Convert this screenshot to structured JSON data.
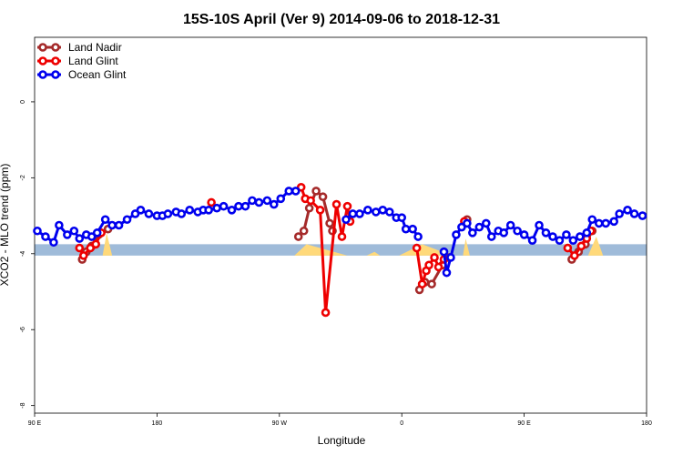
{
  "chart_data": {
    "type": "line",
    "title": "15S-10S April (Ver 9)   2014-09-06 to 2018-12-31",
    "xlabel": "Longitude",
    "ylabel": "XCO2 - MLO trend (ppm)",
    "xlim": [
      0,
      450
    ],
    "ylim": [
      -8.2,
      1.7
    ],
    "x_ticks": [
      {
        "value": 0,
        "label": "90 E"
      },
      {
        "value": 90,
        "label": "180"
      },
      {
        "value": 180,
        "label": "90 W"
      },
      {
        "value": 270,
        "label": "0"
      },
      {
        "value": 360,
        "label": "90 E"
      },
      {
        "value": 450,
        "label": "180"
      }
    ],
    "y_ticks": [
      0,
      -2,
      -4,
      -6,
      -8
    ],
    "legend_position": "top-left",
    "land_band": {
      "ymin": -4.05,
      "ymax": -3.75
    },
    "land_band_color": "#9fbbd9",
    "land_peak_color": "#ffd97a",
    "land_peaks": [
      {
        "x": [
          50,
          53,
          57
        ],
        "ymax": -3.45
      },
      {
        "x": [
          191,
          200,
          230
        ],
        "ymax": -3.75
      },
      {
        "x": [
          244,
          250,
          254
        ],
        "ymax": -3.95
      },
      {
        "x": [
          268,
          285,
          307
        ],
        "ymax": -3.75
      },
      {
        "x": [
          315,
          317,
          320
        ],
        "ymax": -3.6
      },
      {
        "x": [
          407,
          413,
          418
        ],
        "ymax": -3.55
      }
    ],
    "series": [
      {
        "name": "Land Nadir",
        "color": "#a52a2a",
        "segments": [
          [
            [
              35,
              -4.15
            ],
            [
              38,
              -3.95
            ],
            [
              42,
              -3.8
            ],
            [
              47,
              -3.5
            ],
            [
              54,
              -3.35
            ]
          ],
          [
            [
              194,
              -3.55
            ],
            [
              198,
              -3.4
            ],
            [
              202,
              -2.8
            ],
            [
              207,
              -2.35
            ],
            [
              212,
              -2.5
            ],
            [
              217,
              -3.2
            ],
            [
              219,
              -3.4
            ]
          ],
          [
            [
              283,
              -4.95
            ],
            [
              287,
              -4.75
            ],
            [
              292,
              -4.8
            ],
            [
              300,
              -4.3
            ],
            [
              305,
              -4.1
            ]
          ],
          [
            [
              318,
              -3.1
            ]
          ],
          [
            [
              395,
              -4.15
            ],
            [
              400,
              -3.95
            ],
            [
              405,
              -3.75
            ],
            [
              410,
              -3.4
            ]
          ]
        ]
      },
      {
        "name": "Land Glint",
        "color": "#ee0000",
        "segments": [
          [
            [
              33,
              -3.85
            ],
            [
              36,
              -4.05
            ],
            [
              41,
              -3.85
            ],
            [
              45,
              -3.75
            ],
            [
              49,
              -3.45
            ]
          ],
          [
            [
              130,
              -2.65
            ]
          ],
          [
            [
              196,
              -2.25
            ],
            [
              199,
              -2.55
            ],
            [
              203,
              -2.6
            ],
            [
              210,
              -2.85
            ],
            [
              214,
              -5.55
            ],
            [
              222,
              -2.7
            ],
            [
              226,
              -3.55
            ],
            [
              230,
              -2.75
            ],
            [
              232,
              -3.15
            ]
          ],
          [
            [
              281,
              -3.85
            ],
            [
              285,
              -4.8
            ],
            [
              288,
              -4.45
            ],
            [
              290,
              -4.3
            ],
            [
              294,
              -4.1
            ],
            [
              297,
              -4.35
            ],
            [
              301,
              -4.15
            ]
          ],
          [
            [
              316,
              -3.15
            ]
          ],
          [
            [
              392,
              -3.85
            ],
            [
              397,
              -4.05
            ],
            [
              402,
              -3.8
            ],
            [
              406,
              -3.6
            ],
            [
              409,
              -3.4
            ]
          ]
        ]
      },
      {
        "name": "Ocean Glint",
        "color": "#0000ee",
        "segments": [
          [
            [
              2,
              -3.4
            ],
            [
              8,
              -3.55
            ],
            [
              14,
              -3.7
            ],
            [
              18,
              -3.25
            ],
            [
              24,
              -3.5
            ],
            [
              29,
              -3.4
            ],
            [
              33,
              -3.6
            ],
            [
              38,
              -3.5
            ],
            [
              42,
              -3.55
            ],
            [
              46,
              -3.45
            ],
            [
              52,
              -3.1
            ],
            [
              57,
              -3.25
            ],
            [
              62,
              -3.25
            ],
            [
              68,
              -3.1
            ],
            [
              74,
              -2.95
            ],
            [
              78,
              -2.85
            ],
            [
              84,
              -2.95
            ],
            [
              90,
              -3.0
            ],
            [
              94,
              -3.0
            ],
            [
              98,
              -2.95
            ],
            [
              104,
              -2.9
            ],
            [
              108,
              -2.95
            ],
            [
              114,
              -2.85
            ],
            [
              120,
              -2.9
            ],
            [
              124,
              -2.85
            ],
            [
              128,
              -2.85
            ],
            [
              134,
              -2.8
            ],
            [
              139,
              -2.75
            ],
            [
              145,
              -2.85
            ],
            [
              150,
              -2.75
            ],
            [
              155,
              -2.75
            ],
            [
              160,
              -2.6
            ],
            [
              165,
              -2.65
            ],
            [
              171,
              -2.6
            ],
            [
              176,
              -2.7
            ],
            [
              181,
              -2.55
            ],
            [
              187,
              -2.35
            ],
            [
              192,
              -2.35
            ]
          ],
          [
            [
              229,
              -3.1
            ],
            [
              234,
              -2.95
            ],
            [
              239,
              -2.95
            ],
            [
              245,
              -2.85
            ],
            [
              251,
              -2.9
            ],
            [
              256,
              -2.85
            ],
            [
              261,
              -2.9
            ],
            [
              266,
              -3.05
            ],
            [
              270,
              -3.05
            ],
            [
              273,
              -3.35
            ],
            [
              278,
              -3.35
            ],
            [
              282,
              -3.55
            ]
          ],
          [
            [
              301,
              -3.95
            ],
            [
              303,
              -4.5
            ],
            [
              306,
              -4.1
            ],
            [
              310,
              -3.5
            ],
            [
              314,
              -3.3
            ],
            [
              318,
              -3.2
            ],
            [
              322,
              -3.45
            ],
            [
              327,
              -3.3
            ],
            [
              332,
              -3.2
            ],
            [
              336,
              -3.55
            ],
            [
              341,
              -3.4
            ],
            [
              345,
              -3.45
            ],
            [
              350,
              -3.25
            ],
            [
              355,
              -3.4
            ],
            [
              360,
              -3.5
            ],
            [
              366,
              -3.65
            ],
            [
              371,
              -3.25
            ],
            [
              376,
              -3.45
            ],
            [
              381,
              -3.55
            ],
            [
              386,
              -3.65
            ],
            [
              391,
              -3.5
            ],
            [
              396,
              -3.65
            ],
            [
              401,
              -3.55
            ],
            [
              406,
              -3.45
            ],
            [
              410,
              -3.1
            ],
            [
              415,
              -3.2
            ],
            [
              420,
              -3.2
            ],
            [
              426,
              -3.15
            ],
            [
              430,
              -2.95
            ],
            [
              436,
              -2.85
            ],
            [
              441,
              -2.95
            ],
            [
              447,
              -3.0
            ]
          ]
        ]
      }
    ]
  }
}
